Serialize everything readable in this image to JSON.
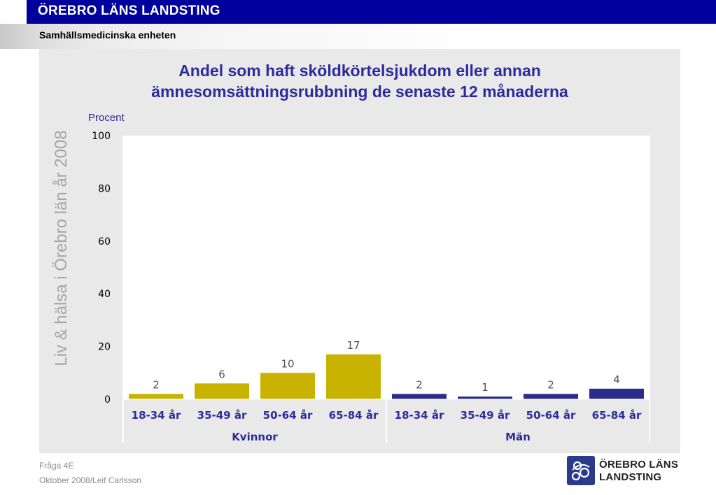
{
  "header": {
    "org_title": "ÖREBRO LÄNS LANDSTING",
    "unit_name": "Samhällsmedicinska enheten"
  },
  "side_text": "Liv & hälsa i Örebro län år 2008",
  "footer": {
    "question": "Fråga 4E",
    "date_author": "Oktober 2008/Leif Carlsson"
  },
  "logo": {
    "line1": "ÖREBRO LÄNS",
    "line2": "LANDSTING",
    "icon": "landsting-emblem-icon"
  },
  "colors": {
    "header_blue": "#00009c",
    "title_blue": "#2b2b9c",
    "kvinnor_bar": "#c8b400",
    "man_bar": "#2b2b8c"
  },
  "chart_data": {
    "type": "bar",
    "title": "Andel som haft sköldkörtelsjukdom eller annan ämnesomsättningsrubbning de senaste 12 månaderna",
    "title_line1": "Andel som haft sköldkörtelsjukdom eller annan",
    "title_line2": "ämnesomsättningsrubbning de senaste 12 månaderna",
    "ylabel": "Procent",
    "ylim": [
      0,
      100
    ],
    "yticks": [
      0,
      20,
      40,
      60,
      80,
      100
    ],
    "grid": false,
    "groups": [
      {
        "name": "Kvinnor",
        "color": "#c8b400",
        "categories": [
          "18-34 år",
          "35-49 år",
          "50-64 år",
          "65-84 år"
        ],
        "values": [
          2,
          6,
          10,
          17
        ]
      },
      {
        "name": "Män",
        "color": "#2b2b8c",
        "categories": [
          "18-34 år",
          "35-49 år",
          "50-64 år",
          "65-84 år"
        ],
        "values": [
          2,
          1,
          2,
          4
        ]
      }
    ]
  }
}
